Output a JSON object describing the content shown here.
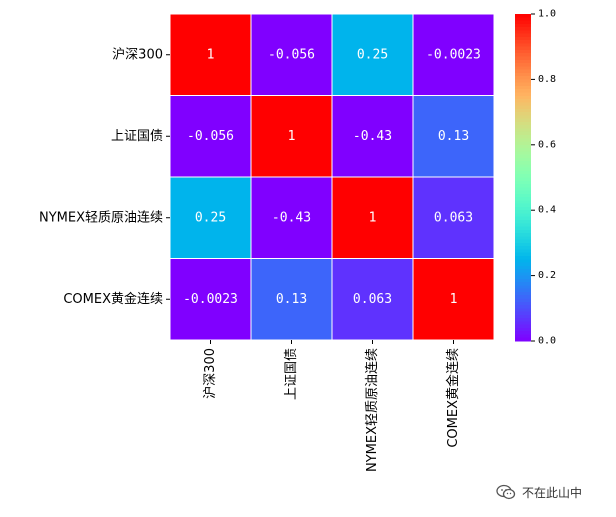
{
  "chart_data": {
    "type": "heatmap",
    "row_labels": [
      "沪深300",
      "上证国债",
      "NYMEX轻质原油连续",
      "COMEX黄金连续"
    ],
    "col_labels": [
      "沪深300",
      "上证国债",
      "NYMEX轻质原油连续",
      "COMEX黄金连续"
    ],
    "values": [
      [
        1,
        -0.056,
        0.25,
        -0.0023
      ],
      [
        -0.056,
        1,
        -0.43,
        0.13
      ],
      [
        0.25,
        -0.43,
        1,
        0.063
      ],
      [
        -0.0023,
        0.13,
        0.063,
        1
      ]
    ],
    "cell_text": [
      [
        "1",
        "-0.056",
        "0.25",
        "-0.0023"
      ],
      [
        "-0.056",
        "1",
        "-0.43",
        "0.13"
      ],
      [
        "0.25",
        "-0.43",
        "1",
        "0.063"
      ],
      [
        "-0.0023",
        "0.13",
        "0.063",
        "1"
      ]
    ],
    "colormap": "rainbow",
    "vmin": 0.0,
    "vmax": 1.0,
    "colorbar_ticks": [
      "0.0",
      "0.2",
      "0.4",
      "0.6",
      "0.8",
      "1.0"
    ],
    "annotations": true,
    "grid_lines_color": "#ffffff"
  },
  "watermark": {
    "text": "不在此山中",
    "icon": "wechat-icon"
  }
}
